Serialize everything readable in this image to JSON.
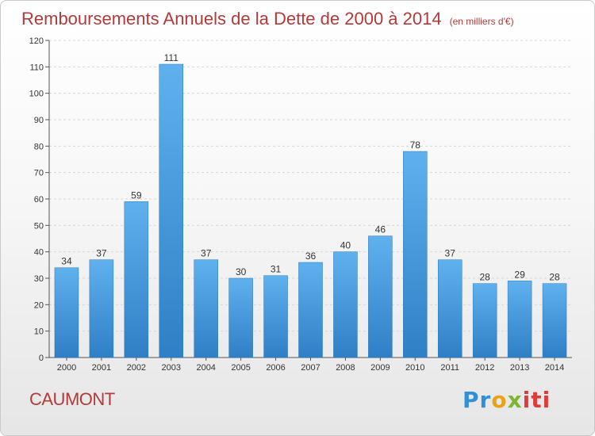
{
  "header": {
    "title": "Remboursements Annuels de la Dette de 2000 à 2014",
    "subtitle": "(en milliers d'€)"
  },
  "commune": "CAUMONT",
  "logo": {
    "letters": [
      "Pr",
      "o",
      "x",
      "iti"
    ]
  },
  "chart_data": {
    "type": "bar",
    "title": "Remboursements Annuels de la Dette de 2000 à 2014",
    "subtitle": "(en milliers d'€)",
    "categories": [
      "2000",
      "2001",
      "2002",
      "2003",
      "2004",
      "2005",
      "2006",
      "2007",
      "2008",
      "2009",
      "2010",
      "2011",
      "2012",
      "2013",
      "2014"
    ],
    "values": [
      34,
      37,
      59,
      111,
      37,
      30,
      31,
      36,
      40,
      46,
      78,
      37,
      28,
      29,
      28
    ],
    "ylim": [
      0,
      120
    ],
    "yticks": [
      0,
      10,
      20,
      30,
      40,
      50,
      60,
      70,
      80,
      90,
      100,
      110,
      120
    ],
    "grid": true,
    "bar_color": "#4a9fe0"
  }
}
